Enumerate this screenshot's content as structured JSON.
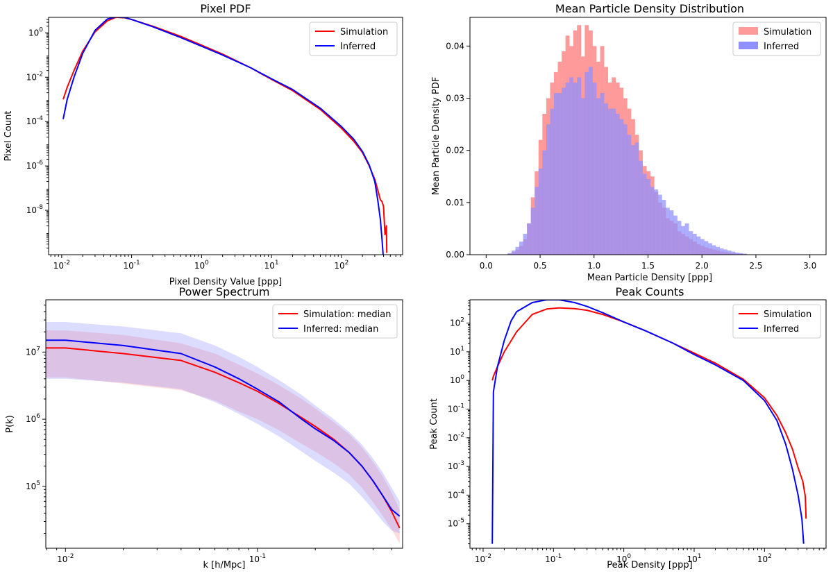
{
  "chart_data": [
    {
      "id": "pixel-pdf",
      "type": "line",
      "title": "Pixel PDF",
      "xlabel": "Pixel Density Value [ppp]",
      "ylabel": "Pixel Count",
      "xscale": "log",
      "yscale": "log",
      "xlim": [
        0.0065,
        750
      ],
      "ylim": [
        1e-10,
        5
      ],
      "xticks": [
        {
          "v": 0.01,
          "b": "10",
          "e": "-2"
        },
        {
          "v": 0.1,
          "b": "10",
          "e": "-1"
        },
        {
          "v": 1,
          "b": "10",
          "e": "0"
        },
        {
          "v": 10,
          "b": "10",
          "e": "1"
        },
        {
          "v": 100,
          "b": "10",
          "e": "2"
        }
      ],
      "yticks": [
        {
          "v": 1e-08,
          "b": "10",
          "e": "-8"
        },
        {
          "v": 1e-06,
          "b": "10",
          "e": "-6"
        },
        {
          "v": 0.0001,
          "b": "10",
          "e": "-4"
        },
        {
          "v": 0.01,
          "b": "10",
          "e": "-2"
        },
        {
          "v": 1,
          "b": "10",
          "e": "0"
        }
      ],
      "legend": {
        "position": "top-right",
        "entries": [
          "Simulation",
          "Inferred"
        ]
      },
      "series": [
        {
          "name": "Simulation",
          "color": "#ff0000",
          "x": [
            0.0105,
            0.012,
            0.015,
            0.02,
            0.03,
            0.045,
            0.06,
            0.08,
            0.1,
            0.2,
            0.5,
            1,
            2,
            5,
            10,
            20,
            50,
            100,
            150,
            200,
            250,
            300,
            340,
            360,
            380,
            400,
            420,
            440,
            445
          ],
          "y": [
            0.001,
            0.0035,
            0.02,
            0.15,
            1.1,
            3.5,
            5,
            4.8,
            4,
            2,
            0.7,
            0.28,
            0.11,
            0.027,
            0.008,
            0.0025,
            0.00035,
            5e-05,
            1.3e-05,
            4e-06,
            1e-06,
            2.5e-07,
            6e-08,
            3e-08,
            2.5e-08,
            1.5e-08,
            8e-10,
            2e-09,
            1.2e-10
          ]
        },
        {
          "name": "Inferred",
          "color": "#0000ff",
          "x": [
            0.0105,
            0.012,
            0.015,
            0.02,
            0.03,
            0.045,
            0.06,
            0.08,
            0.1,
            0.2,
            0.5,
            1,
            2,
            5,
            10,
            20,
            50,
            100,
            150,
            200,
            250,
            300,
            330,
            360,
            380,
            395
          ],
          "y": [
            0.00013,
            0.001,
            0.01,
            0.12,
            1.3,
            4.2,
            5.2,
            4.9,
            4,
            1.9,
            0.62,
            0.25,
            0.1,
            0.027,
            0.0085,
            0.0028,
            0.0004,
            6e-05,
            1.6e-05,
            4.5e-06,
            1.1e-06,
            2e-07,
            3e-08,
            4e-09,
            5e-10,
            1e-10
          ]
        }
      ]
    },
    {
      "id": "mean-density",
      "type": "histogram",
      "title": "Mean Particle Density Distribution",
      "xlabel": "Mean Particle Density [ppp]",
      "ylabel": "Mean Particle Density PDF",
      "xlim": [
        -0.15,
        3.15
      ],
      "ylim": [
        0,
        0.0455
      ],
      "xticks": [
        {
          "v": 0,
          "t": "0.0"
        },
        {
          "v": 0.5,
          "t": "0.5"
        },
        {
          "v": 1,
          "t": "1.0"
        },
        {
          "v": 1.5,
          "t": "1.5"
        },
        {
          "v": 2,
          "t": "2.0"
        },
        {
          "v": 2.5,
          "t": "2.5"
        },
        {
          "v": 3,
          "t": "3.0"
        }
      ],
      "yticks": [
        {
          "v": 0,
          "t": "0.00"
        },
        {
          "v": 0.01,
          "t": "0.01"
        },
        {
          "v": 0.02,
          "t": "0.02"
        },
        {
          "v": 0.03,
          "t": "0.03"
        },
        {
          "v": 0.04,
          "t": "0.04"
        }
      ],
      "legend": {
        "position": "top-right",
        "entries": [
          "Simulation",
          "Inferred"
        ]
      },
      "bin_start": 0.2,
      "bin_width": 0.0357,
      "series": [
        {
          "name": "Simulation",
          "color": "#ff9a9a",
          "values": [
            0.0002,
            0.0005,
            0.001,
            0.0017,
            0.003,
            0.006,
            0.011,
            0.016,
            0.022,
            0.027,
            0.03,
            0.033,
            0.035,
            0.037,
            0.039,
            0.042,
            0.04,
            0.043,
            0.044,
            0.038,
            0.044,
            0.043,
            0.04,
            0.037,
            0.04,
            0.036,
            0.033,
            0.034,
            0.033,
            0.032,
            0.03,
            0.028,
            0.026,
            0.023,
            0.02,
            0.017,
            0.016,
            0.015,
            0.012,
            0.01,
            0.009,
            0.007,
            0.0065,
            0.006,
            0.0045,
            0.004,
            0.0035,
            0.003,
            0.0025,
            0.002,
            0.0017,
            0.0014,
            0.0012,
            0.001,
            0.0008,
            0.0006,
            0.0005,
            0.0004,
            0.0003,
            0.0002,
            0.0002,
            0.0001
          ]
        },
        {
          "name": "Inferred",
          "color": "#8f8fff",
          "values": [
            0.0003,
            0.0008,
            0.0015,
            0.0025,
            0.004,
            0.006,
            0.009,
            0.013,
            0.0165,
            0.02,
            0.025,
            0.028,
            0.031,
            0.031,
            0.032,
            0.033,
            0.034,
            0.033,
            0.034,
            0.03,
            0.035,
            0.036,
            0.033,
            0.03,
            0.031,
            0.029,
            0.028,
            0.028,
            0.027,
            0.026,
            0.025,
            0.023,
            0.021,
            0.0215,
            0.018,
            0.0155,
            0.0145,
            0.013,
            0.0125,
            0.0115,
            0.0105,
            0.009,
            0.0085,
            0.0075,
            0.0065,
            0.0055,
            0.006,
            0.0045,
            0.004,
            0.0035,
            0.003,
            0.0026,
            0.0022,
            0.0018,
            0.0015,
            0.0012,
            0.001,
            0.0008,
            0.0006,
            0.0004,
            0.0003,
            0.0002
          ]
        }
      ]
    },
    {
      "id": "power-spectrum",
      "type": "line",
      "title": "Power Spectrum",
      "xlabel": "k [h/Mpc]",
      "ylabel": "P(k)",
      "xscale": "log",
      "yscale": "log",
      "xlim": [
        0.0079,
        0.57
      ],
      "ylim": [
        12000,
        60000000
      ],
      "xticks": [
        {
          "v": 0.01,
          "b": "10",
          "e": "-2"
        },
        {
          "v": 0.1,
          "b": "10",
          "e": "-1"
        }
      ],
      "yticks": [
        {
          "v": 100000,
          "b": "10",
          "e": "5"
        },
        {
          "v": 1000000,
          "b": "10",
          "e": "6"
        },
        {
          "v": 10000000,
          "b": "10",
          "e": "7"
        }
      ],
      "legend": {
        "position": "top-right",
        "entries": [
          "Simulation: median",
          "Inferred: median"
        ]
      },
      "x": [
        0.0079,
        0.01,
        0.02,
        0.04,
        0.06,
        0.08,
        0.1,
        0.13,
        0.17,
        0.2,
        0.25,
        0.3,
        0.35,
        0.4,
        0.45,
        0.5,
        0.55
      ],
      "series": [
        {
          "name": "Simulation: median",
          "color": "#ff0000",
          "band_color": "#ff8080",
          "values": [
            11500000,
            11500000,
            9500000,
            7500000,
            5000000,
            3500000,
            2600000,
            1700000,
            1050000,
            780000,
            500000,
            320000,
            200000,
            120000,
            72000,
            42000,
            24000
          ],
          "lower": [
            4200000,
            4200000,
            3400000,
            2700000,
            1900000,
            1300000,
            1000000,
            680000,
            430000,
            330000,
            220000,
            150000,
            95000,
            58000,
            36000,
            23000,
            14000
          ],
          "upper": [
            21000000,
            21000000,
            18000000,
            13500000,
            9500000,
            6500000,
            4800000,
            3200000,
            2000000,
            1450000,
            900000,
            600000,
            380000,
            230000,
            140000,
            80000,
            45000
          ]
        },
        {
          "name": "Inferred: median",
          "color": "#0000ff",
          "band_color": "#8080ff",
          "values": [
            15000000,
            15000000,
            12500000,
            9500000,
            6000000,
            4000000,
            2800000,
            1800000,
            1000000,
            720000,
            480000,
            320000,
            200000,
            120000,
            72000,
            45000,
            36000
          ],
          "lower": [
            4000000,
            4000000,
            3500000,
            2800000,
            1800000,
            1200000,
            850000,
            550000,
            330000,
            240000,
            160000,
            110000,
            70000,
            45000,
            30000,
            22000,
            20000
          ],
          "upper": [
            28000000,
            28000000,
            24000000,
            19000000,
            12500000,
            8500000,
            6000000,
            3800000,
            2300000,
            1600000,
            1000000,
            650000,
            420000,
            260000,
            160000,
            95000,
            60000
          ]
        }
      ]
    },
    {
      "id": "peak-counts",
      "type": "line",
      "title": "Peak Counts",
      "xlabel": "Peak Density [ppp]",
      "ylabel": "Peak Count",
      "xscale": "log",
      "yscale": "log",
      "xlim": [
        0.0065,
        750
      ],
      "ylim": [
        1.4e-06,
        650
      ],
      "xticks": [
        {
          "v": 0.01,
          "b": "10",
          "e": "-2"
        },
        {
          "v": 0.1,
          "b": "10",
          "e": "-1"
        },
        {
          "v": 1,
          "b": "10",
          "e": "0"
        },
        {
          "v": 10,
          "b": "10",
          "e": "1"
        },
        {
          "v": 100,
          "b": "10",
          "e": "2"
        }
      ],
      "yticks": [
        {
          "v": 1e-05,
          "b": "10",
          "e": "-5"
        },
        {
          "v": 0.0001,
          "b": "10",
          "e": "-4"
        },
        {
          "v": 0.001,
          "b": "10",
          "e": "-3"
        },
        {
          "v": 0.01,
          "b": "10",
          "e": "-2"
        },
        {
          "v": 0.1,
          "b": "10",
          "e": "-1"
        },
        {
          "v": 1,
          "b": "10",
          "e": "0"
        },
        {
          "v": 10,
          "b": "10",
          "e": "1"
        },
        {
          "v": 100,
          "b": "10",
          "e": "2"
        }
      ],
      "legend": {
        "position": "top-right",
        "entries": [
          "Simulation",
          "Inferred"
        ]
      },
      "series": [
        {
          "name": "Simulation",
          "color": "#ff0000",
          "x": [
            0.0135,
            0.014,
            0.016,
            0.02,
            0.03,
            0.05,
            0.08,
            0.12,
            0.2,
            0.3,
            0.5,
            1,
            2,
            5,
            10,
            20,
            50,
            100,
            150,
            200,
            250,
            300,
            350,
            380,
            390
          ],
          "y": [
            1,
            1.4,
            3,
            10,
            50,
            200,
            310,
            340,
            320,
            280,
            200,
            110,
            55,
            20,
            9,
            4,
            1.1,
            0.25,
            0.06,
            0.015,
            0.004,
            0.0009,
            0.0003,
            9e-05,
            1.5e-05
          ]
        },
        {
          "name": "Inferred",
          "color": "#0000ff",
          "x": [
            0.0135,
            0.014,
            0.016,
            0.02,
            0.025,
            0.03,
            0.05,
            0.08,
            0.12,
            0.2,
            0.3,
            0.5,
            1,
            2,
            5,
            10,
            20,
            50,
            100,
            150,
            200,
            250,
            300,
            340,
            360
          ],
          "y": [
            2e-06,
            0.4,
            3,
            25,
            120,
            250,
            520,
            650,
            650,
            520,
            380,
            230,
            110,
            55,
            20,
            8,
            3.5,
            1,
            0.2,
            0.04,
            0.006,
            0.0008,
            0.0001,
            1.5e-05,
            2e-06
          ]
        }
      ]
    }
  ]
}
